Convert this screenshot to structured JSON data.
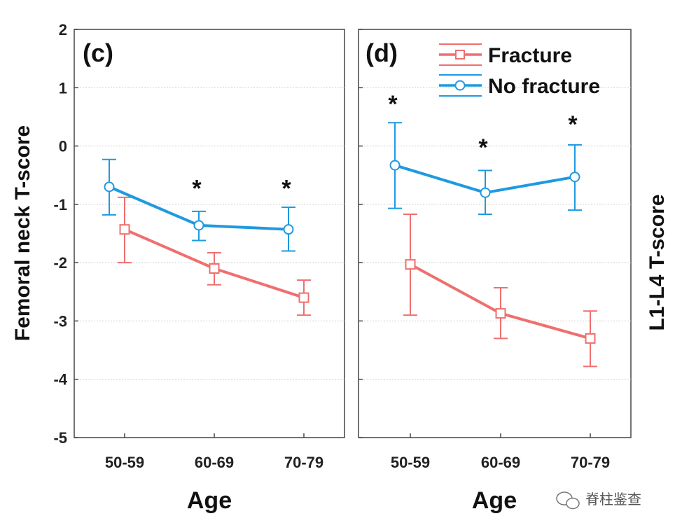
{
  "chart_data": [
    {
      "type": "line",
      "panel_label": "(c)",
      "ylabel": "Femoral neck T-score",
      "xlabel": "Age",
      "categories": [
        "50-59",
        "60-69",
        "70-79"
      ],
      "ylim": [
        -5,
        2
      ],
      "yticks": [
        "2",
        "1",
        "0",
        "-1",
        "-2",
        "-3",
        "-4",
        "-5"
      ],
      "grid": true,
      "series": [
        {
          "name": "Fracture",
          "color": "#ef6f6f",
          "marker": "square",
          "values": [
            -1.43,
            -2.1,
            -2.6
          ],
          "err_low": [
            -2.0,
            -2.38,
            -2.9
          ],
          "err_high": [
            -0.88,
            -1.83,
            -2.3
          ]
        },
        {
          "name": "No fracture",
          "color": "#1e9ae0",
          "marker": "circle",
          "values": [
            -0.7,
            -1.36,
            -1.43
          ],
          "err_low": [
            -1.18,
            -1.62,
            -1.8
          ],
          "err_high": [
            -0.23,
            -1.12,
            -1.05
          ]
        }
      ],
      "annotations": [
        {
          "text": "*",
          "category": "60-69",
          "y": -0.6
        },
        {
          "text": "*",
          "category": "70-79",
          "y": -0.6
        }
      ]
    },
    {
      "type": "line",
      "panel_label": "(d)",
      "ylabel": "L1-L4 T-score",
      "xlabel": "Age",
      "categories": [
        "50-59",
        "60-69",
        "70-79"
      ],
      "ylim": [
        -5,
        2
      ],
      "grid": true,
      "legend": "top-right",
      "series": [
        {
          "name": "Fracture",
          "color": "#ef6f6f",
          "marker": "square",
          "values": [
            -2.03,
            -2.87,
            -3.3
          ],
          "err_low": [
            -2.9,
            -3.3,
            -3.78
          ],
          "err_high": [
            -1.17,
            -2.43,
            -2.83
          ]
        },
        {
          "name": "No fracture",
          "color": "#1e9ae0",
          "marker": "circle",
          "values": [
            -0.33,
            -0.8,
            -0.53
          ],
          "err_low": [
            -1.07,
            -1.17,
            -1.1
          ],
          "err_high": [
            0.4,
            -0.42,
            0.02
          ]
        }
      ],
      "annotations": [
        {
          "text": "*",
          "category": "50-59",
          "y": 0.85
        },
        {
          "text": "*",
          "category": "60-69",
          "y": 0.1
        },
        {
          "text": "*",
          "category": "70-79",
          "y": 0.5
        }
      ]
    }
  ],
  "watermark": "脊柱鉴查"
}
